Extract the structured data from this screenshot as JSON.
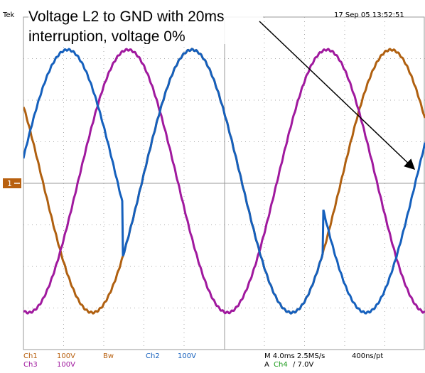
{
  "header": {
    "brand": "Tek",
    "timestamp": "17 Sep 05 13:52:51"
  },
  "annotation": {
    "lines": [
      "Voltage L2 to GND with 20ms",
      "interruption, voltage 0%"
    ]
  },
  "marker": "1",
  "footer": {
    "row1": [
      "Ch1",
      "100V",
      "Bw",
      "Ch2",
      "100V",
      "M 4.0ms 2.5MS/s",
      "400ns/pt"
    ],
    "row2": [
      "Ch3",
      "100V",
      "A",
      "Ch4",
      "∕ 7.0V"
    ]
  }
}
